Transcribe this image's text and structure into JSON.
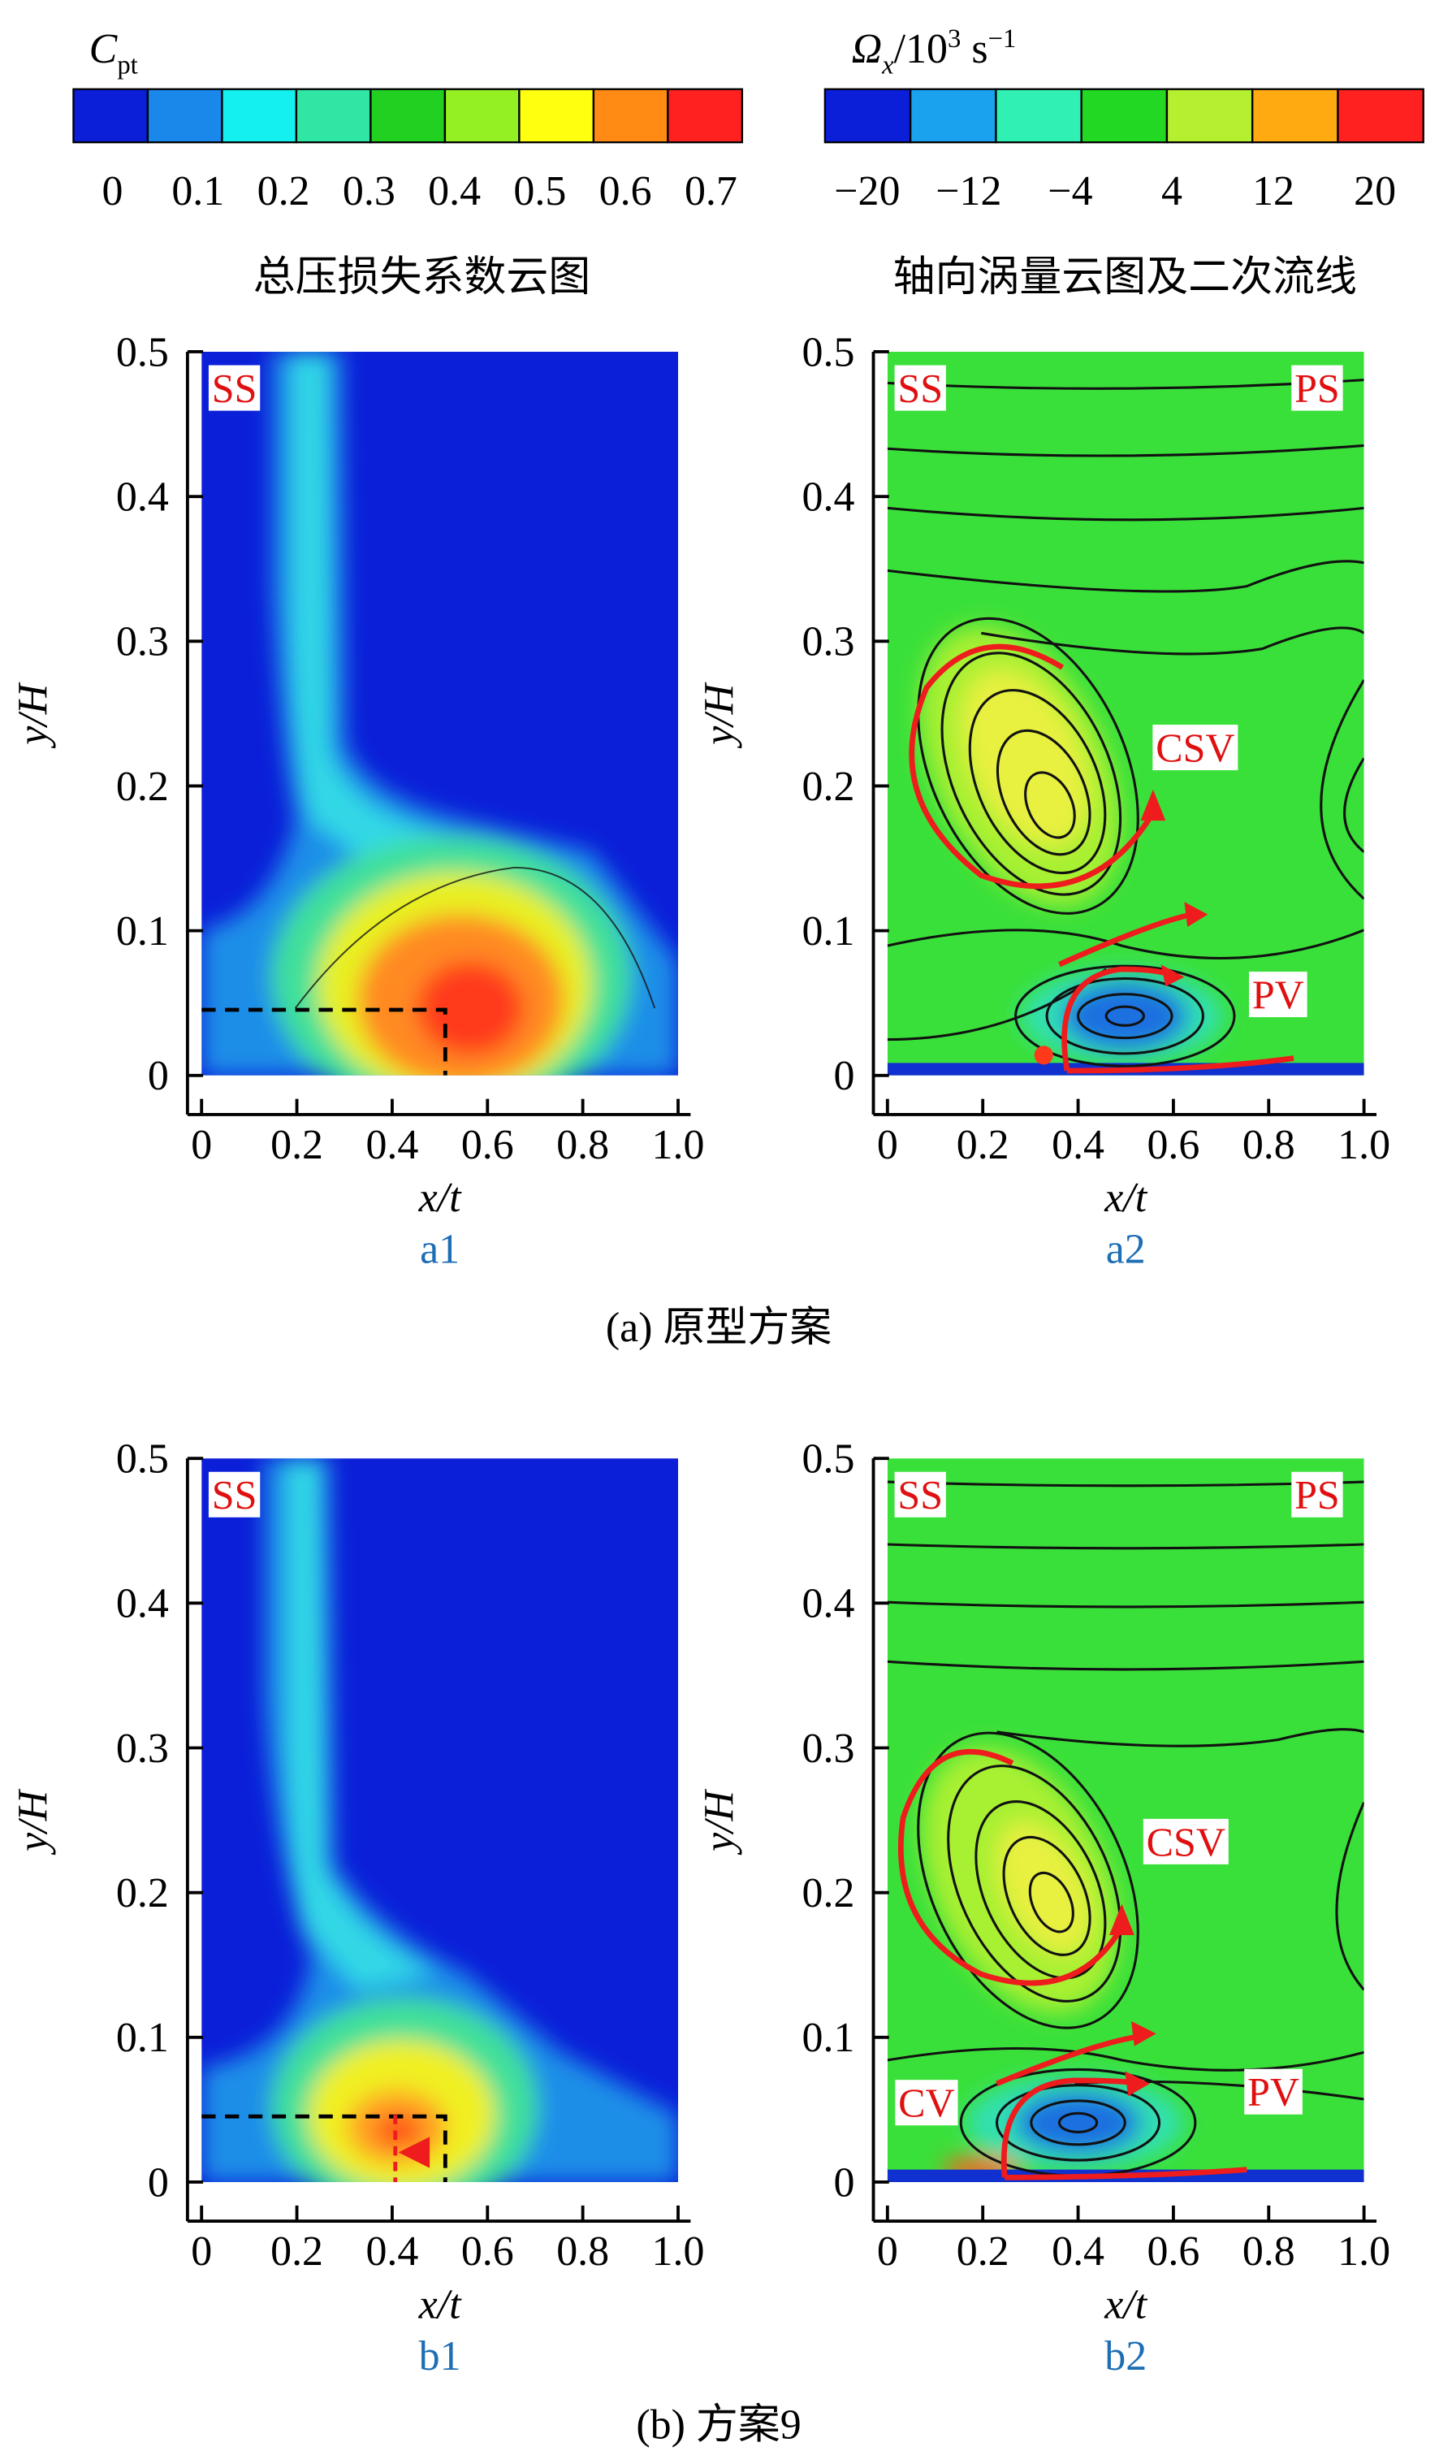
{
  "colorbars": [
    {
      "title_parts": [
        "C",
        "pt"
      ],
      "caption": "总压损失系数云图",
      "ticks": [
        0,
        0.1,
        0.2,
        0.3,
        0.4,
        0.5,
        0.6,
        0.7
      ],
      "colors": [
        "#0b1fd8",
        "#1a88ea",
        "#14f0f0",
        "#30e6a4",
        "#22d022",
        "#94f022",
        "#ffff10",
        "#ff8a14",
        "#ff2020"
      ]
    },
    {
      "title_parts": [
        "Ω",
        "x",
        "/10",
        "3",
        " s",
        "−1"
      ],
      "caption": "轴向涡量云图及二次流线",
      "ticks": [
        {
          "value": -20,
          "label": "−20"
        },
        {
          "value": -12,
          "label": "−12"
        },
        {
          "value": -4,
          "label": "−4"
        },
        4,
        12,
        20
      ],
      "colors": [
        "#0b1fd8",
        "#1aa2ee",
        "#30f0b4",
        "#22d822",
        "#b4f030",
        "#ffaa10",
        "#ff2020"
      ]
    }
  ],
  "figure_captions": [
    "(a) 原型方案",
    "(b) 方案9"
  ],
  "chart_data": [
    {
      "type": "contour",
      "label": "a1",
      "xlabel": "x/t",
      "ylabel": "y/H",
      "xlim": [
        0,
        1
      ],
      "ylim": [
        0,
        0.5
      ],
      "xticks": [
        0,
        0.2,
        0.4,
        0.6,
        0.8,
        {
          "value": 1,
          "label": "1.0"
        }
      ],
      "yticks": [
        0,
        0.1,
        0.2,
        0.3,
        0.4,
        0.5
      ],
      "annotations": [
        "SS"
      ]
    },
    {
      "type": "contour",
      "label": "a2",
      "xlabel": "x/t",
      "ylabel": "y/H",
      "xlim": [
        0,
        1
      ],
      "ylim": [
        0,
        0.5
      ],
      "xticks": [
        0,
        0.2,
        0.4,
        0.6,
        0.8,
        {
          "value": 1,
          "label": "1.0"
        }
      ],
      "yticks": [
        0,
        0.1,
        0.2,
        0.3,
        0.4,
        0.5
      ],
      "annotations": [
        "SS",
        "PS",
        "CSV",
        "PV"
      ]
    },
    {
      "type": "contour",
      "label": "b1",
      "xlabel": "x/t",
      "ylabel": "y/H",
      "xlim": [
        0,
        1
      ],
      "ylim": [
        0,
        0.5
      ],
      "xticks": [
        0,
        0.2,
        0.4,
        0.6,
        0.8,
        {
          "value": 1,
          "label": "1.0"
        }
      ],
      "yticks": [
        0,
        0.1,
        0.2,
        0.3,
        0.4,
        0.5
      ],
      "annotations": [
        "SS"
      ]
    },
    {
      "type": "contour",
      "label": "b2",
      "xlabel": "x/t",
      "ylabel": "y/H",
      "xlim": [
        0,
        1
      ],
      "ylim": [
        0,
        0.5
      ],
      "xticks": [
        0,
        0.2,
        0.4,
        0.6,
        0.8,
        {
          "value": 1,
          "label": "1.0"
        }
      ],
      "yticks": [
        0,
        0.1,
        0.2,
        0.3,
        0.4,
        0.5
      ],
      "annotations": [
        "SS",
        "PS",
        "CSV",
        "PV",
        "CV"
      ]
    }
  ]
}
